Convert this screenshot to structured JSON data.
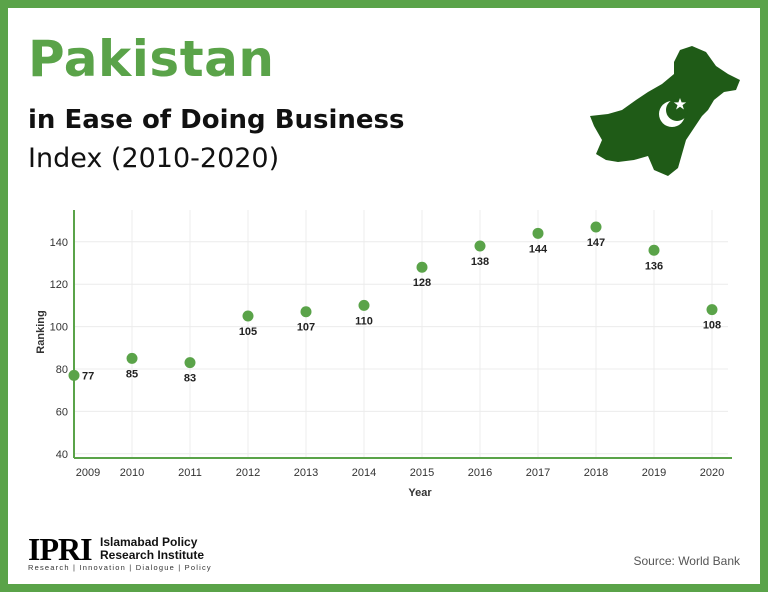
{
  "colors": {
    "accent": "#5aa349",
    "text": "#111111",
    "map_green": "#1f5b17",
    "grid": "#ececec"
  },
  "header": {
    "title": "Pakistan",
    "subtitle": "in Ease of Doing Business",
    "subtitle2": "Index (2010-2020)"
  },
  "map": {
    "icon": "pakistan-map-flag-icon"
  },
  "chart_data": {
    "type": "scatter",
    "title": "",
    "xlabel": "Year",
    "ylabel": "Ranking",
    "x": [
      "2009",
      "2010",
      "2011",
      "2012",
      "2013",
      "2014",
      "2015",
      "2016",
      "2017",
      "2018",
      "2019",
      "2020"
    ],
    "values": [
      77,
      85,
      83,
      105,
      107,
      110,
      128,
      138,
      144,
      147,
      136,
      108
    ],
    "ylim": [
      38,
      155
    ],
    "yticks": [
      40,
      60,
      80,
      100,
      120,
      140
    ],
    "grid": true,
    "legend": "none"
  },
  "footer": {
    "logo_text": "IPRI",
    "org_name_line1": "Islamabad Policy",
    "org_name_line2": "Research Institute",
    "tagline": "Research | Innovation | Dialogue | Policy",
    "source": "Source: World Bank"
  }
}
